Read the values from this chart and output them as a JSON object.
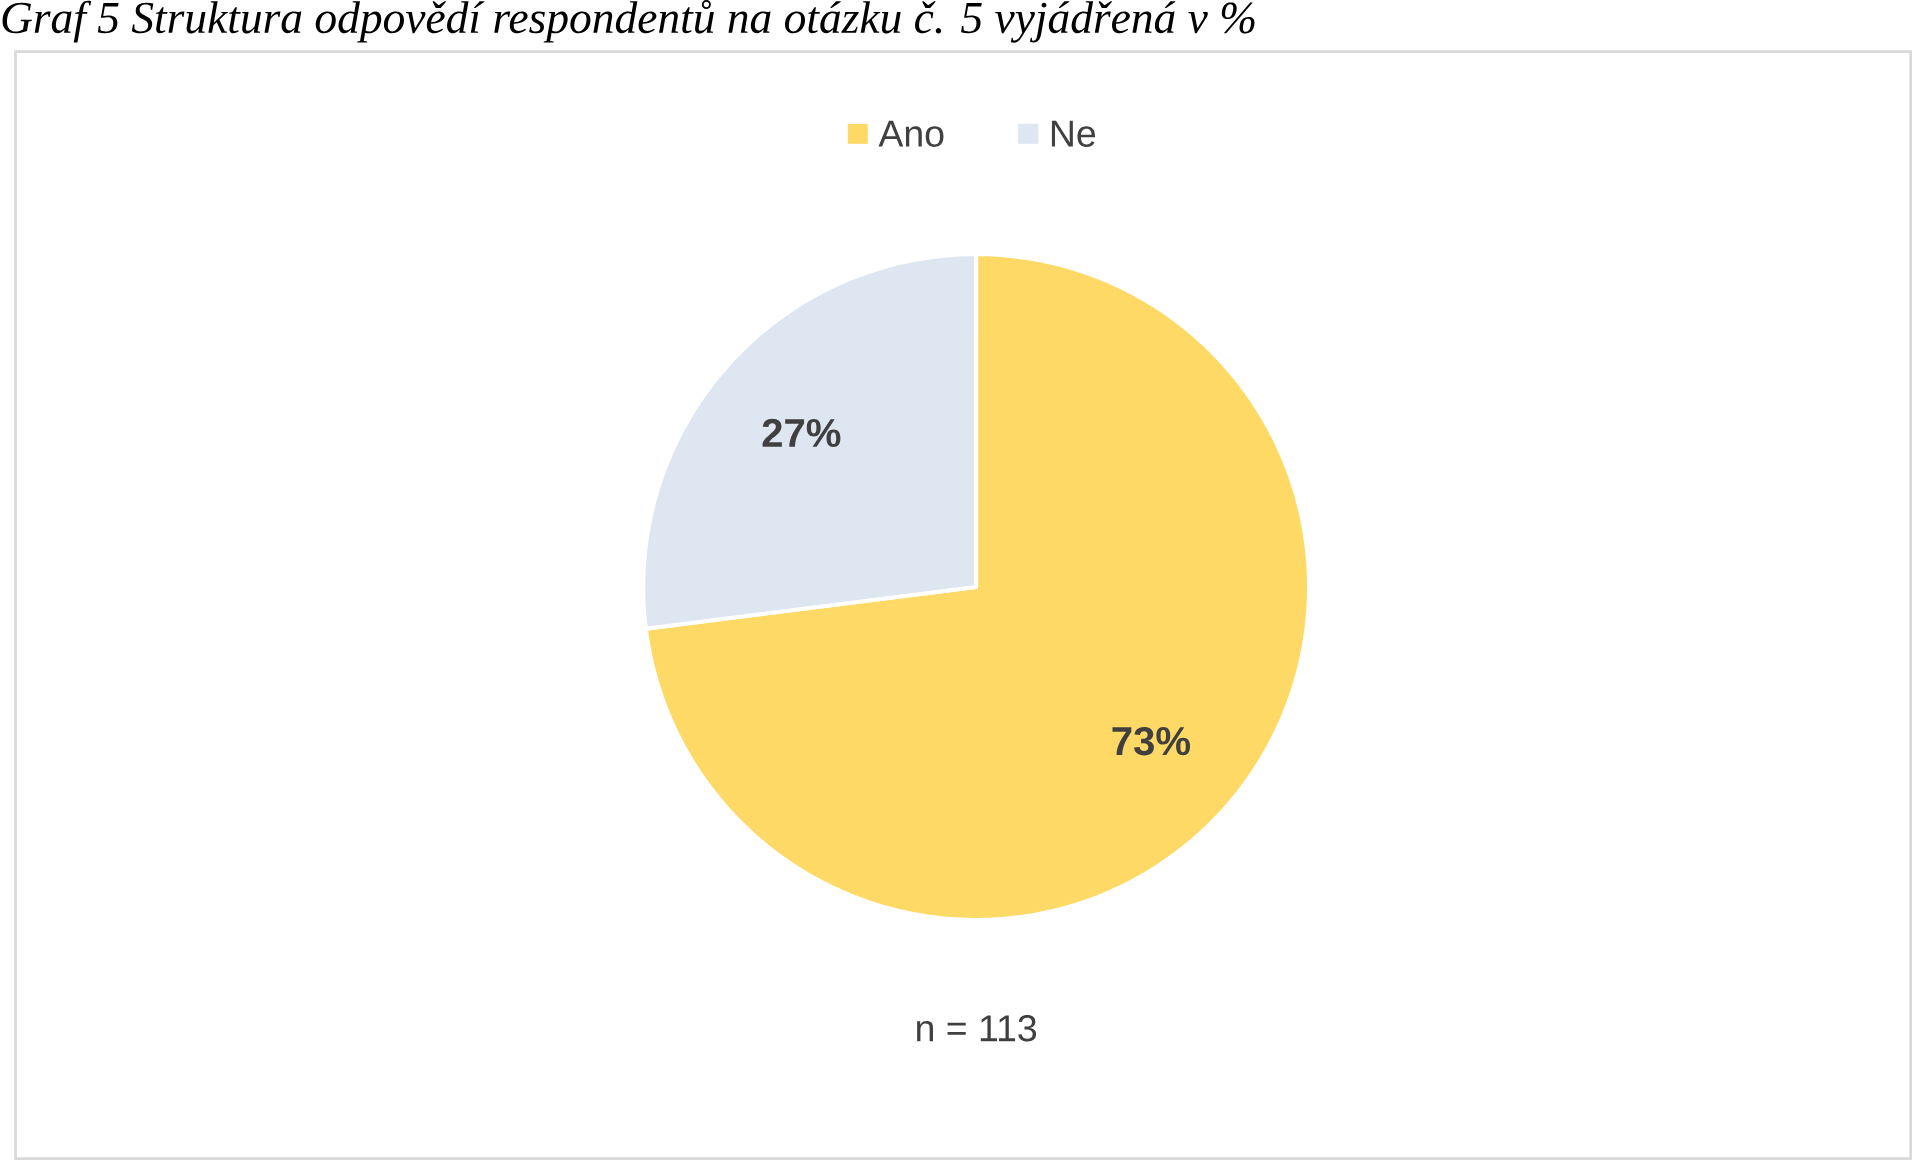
{
  "chart_data": {
    "type": "pie",
    "title": "Graf 5 Struktura odpovědí respondentů na otázku č. 5 vyjádřená v %",
    "categories": [
      "Ano",
      "Ne"
    ],
    "values": [
      73,
      27
    ],
    "colors": [
      "#ffd966",
      "#dee6f1"
    ],
    "value_labels": [
      "73%",
      "27%"
    ],
    "legend": "top",
    "annotations": [
      "n = 113"
    ]
  }
}
